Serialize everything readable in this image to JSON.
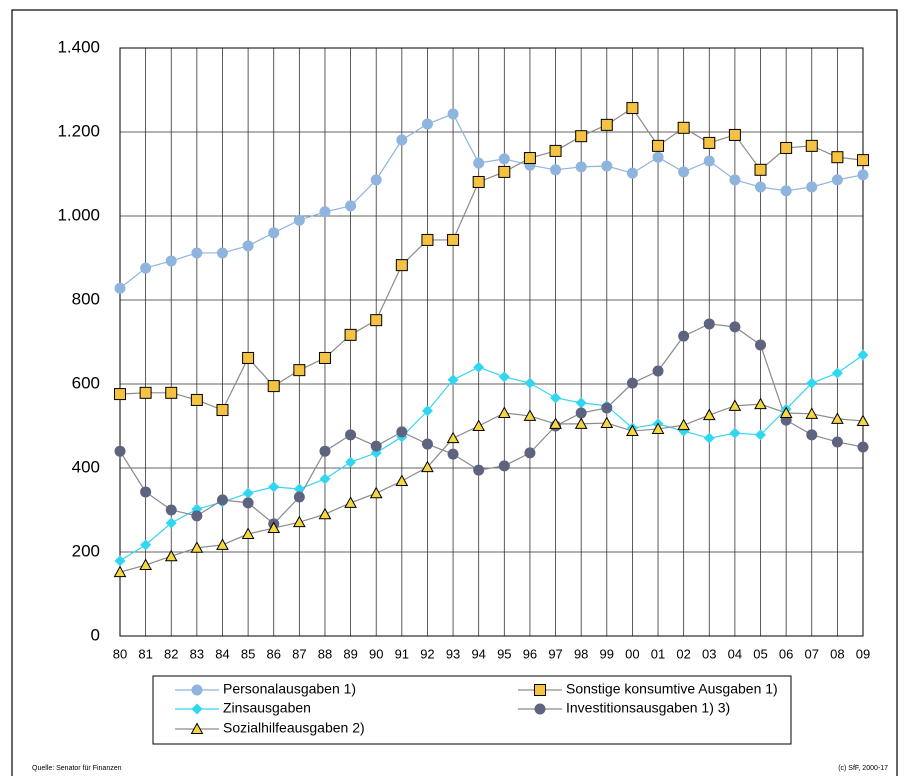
{
  "chart_data": {
    "type": "line",
    "categories": [
      "80",
      "81",
      "82",
      "83",
      "84",
      "85",
      "86",
      "87",
      "88",
      "89",
      "90",
      "91",
      "92",
      "93",
      "94",
      "95",
      "96",
      "97",
      "98",
      "99",
      "00",
      "01",
      "02",
      "03",
      "04",
      "05",
      "06",
      "07",
      "08",
      "09"
    ],
    "series": [
      {
        "name": "Personalausgaben 1)",
        "color": "#8fb4de",
        "line_color": "#8fb4de",
        "marker": "circle",
        "values": [
          828,
          876,
          893,
          912,
          912,
          929,
          960,
          990,
          1010,
          1024,
          1086,
          1181,
          1219,
          1243,
          1126,
          1136,
          1121,
          1110,
          1117,
          1119,
          1102,
          1140,
          1105,
          1131,
          1086,
          1069,
          1060,
          1069,
          1086,
          1098
        ]
      },
      {
        "name": "Sonstige konsumtive Ausgaben 1)",
        "color": "#f5c242",
        "line_color": "#8a8a8a",
        "marker": "square",
        "values": [
          576,
          579,
          579,
          562,
          538,
          662,
          595,
          633,
          662,
          717,
          752,
          883,
          943,
          943,
          1081,
          1105,
          1138,
          1155,
          1190,
          1217,
          1257,
          1167,
          1210,
          1174,
          1193,
          1110,
          1162,
          1167,
          1140,
          1133
        ]
      },
      {
        "name": "Zinsausgaben",
        "color": "#33d6f0",
        "line_color": "#33d6f0",
        "marker": "diamond",
        "values": [
          179,
          217,
          269,
          302,
          319,
          340,
          355,
          350,
          374,
          414,
          436,
          474,
          536,
          610,
          640,
          617,
          602,
          567,
          555,
          548,
          495,
          505,
          488,
          471,
          483,
          479,
          540,
          602,
          626,
          669
        ]
      },
      {
        "name": "Investitionsausgaben 1)  3)",
        "color": "#5e6480",
        "line_color": "#8a8a8a",
        "marker": "circle",
        "values": [
          440,
          343,
          300,
          286,
          324,
          317,
          267,
          331,
          440,
          479,
          452,
          486,
          457,
          433,
          395,
          405,
          436,
          500,
          531,
          543,
          602,
          631,
          714,
          743,
          736,
          693,
          514,
          479,
          462,
          450
        ]
      },
      {
        "name": "Sozialhilfeausgaben  2)",
        "color": "#f5d742",
        "line_color": "#8a8a8a",
        "marker": "triangle",
        "values": [
          152,
          169,
          190,
          210,
          217,
          243,
          257,
          271,
          290,
          317,
          340,
          369,
          402,
          471,
          500,
          531,
          524,
          505,
          505,
          507,
          488,
          493,
          502,
          526,
          548,
          552,
          531,
          529,
          517,
          512
        ]
      }
    ],
    "ylim": [
      0,
      1400
    ],
    "yticks": [
      0,
      200,
      400,
      600,
      800,
      {
        "value": 1000,
        "label": "1.000"
      },
      {
        "value": 1200,
        "label": "1.200"
      },
      {
        "value": 1400,
        "label": "1.400"
      }
    ],
    "grid": true,
    "source": "Quelle: Senator für Finanzen",
    "copyright": "(c) SfF, 2000-17"
  }
}
